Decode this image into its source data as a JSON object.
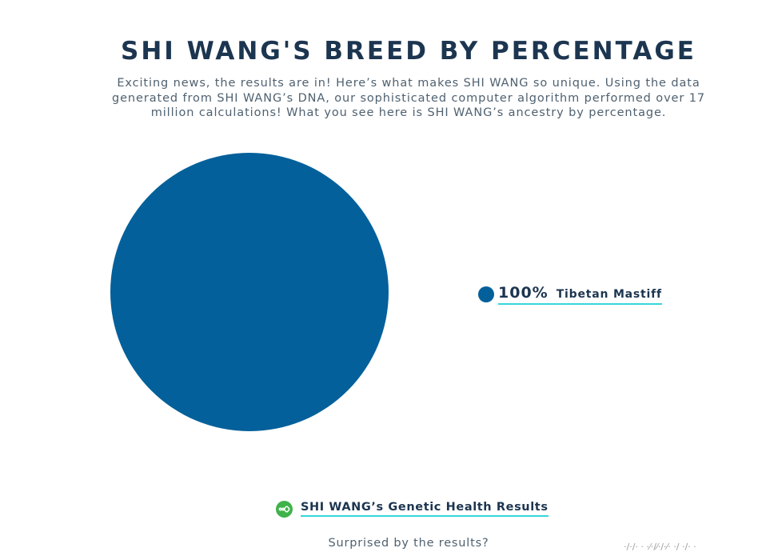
{
  "header": {
    "title": "SHI WANG'S BREED BY PERCENTAGE",
    "subtitle": "Exciting news, the results are in! Here’s what makes SHI WANG so unique. Using the data generated from SHI WANG’s DNA, our sophisticated computer algorithm performed over 17 million calculations! What you see here is SHI WANG’s ancestry by percentage."
  },
  "chart_data": {
    "type": "pie",
    "title": "SHI WANG'S BREED BY PERCENTAGE",
    "slices": [
      {
        "label": "Tibetan Mastiff",
        "value": 100,
        "display": "100%",
        "color": "#03609a"
      }
    ],
    "legend_position": "right"
  },
  "links": {
    "health_results": "SHI WANG’s Genetic Health Results",
    "health_icon": "dna-icon",
    "health_icon_color": "#3fb24a"
  },
  "footer": {
    "surprised": "Surprised by the results?"
  },
  "colors": {
    "accent_underline": "#37d6dc",
    "heading": "#1c3550"
  }
}
